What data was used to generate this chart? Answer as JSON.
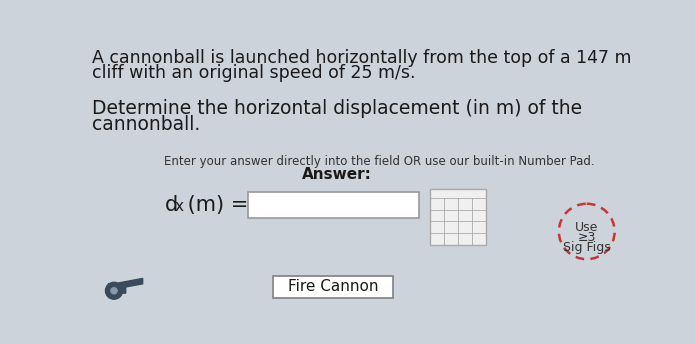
{
  "bg_color": "#cdd3da",
  "title_line1": "A cannonball is launched horizontally from the top of a 147 m",
  "title_line2": "cliff with an original speed of 25 m/s.",
  "question_line1": "Determine the horizontal displacement (in m) of the",
  "question_line2": "cannonball.",
  "instruction": "Enter your answer directly into the field OR use our built-in Number Pad.",
  "answer_label": "Answer:",
  "formula_label": "d",
  "formula_sub": "x",
  "formula_rest": " (m) =",
  "fire_button": "Fire Cannon",
  "sig_figs_line1": "Use",
  "sig_figs_line2": "≥3",
  "sig_figs_line3": "Sig Figs",
  "title_fontsize": 12.5,
  "question_fontsize": 13.5,
  "instruction_fontsize": 8.5,
  "answer_fontsize": 11,
  "formula_fontsize": 15,
  "button_fontsize": 11,
  "text_color": "#1a1a1a",
  "pad_red": "#cc2222",
  "circle_color": "#cc3333",
  "grid_color": "#aaaaaa",
  "input_border": "#999999",
  "fire_border": "#888888"
}
